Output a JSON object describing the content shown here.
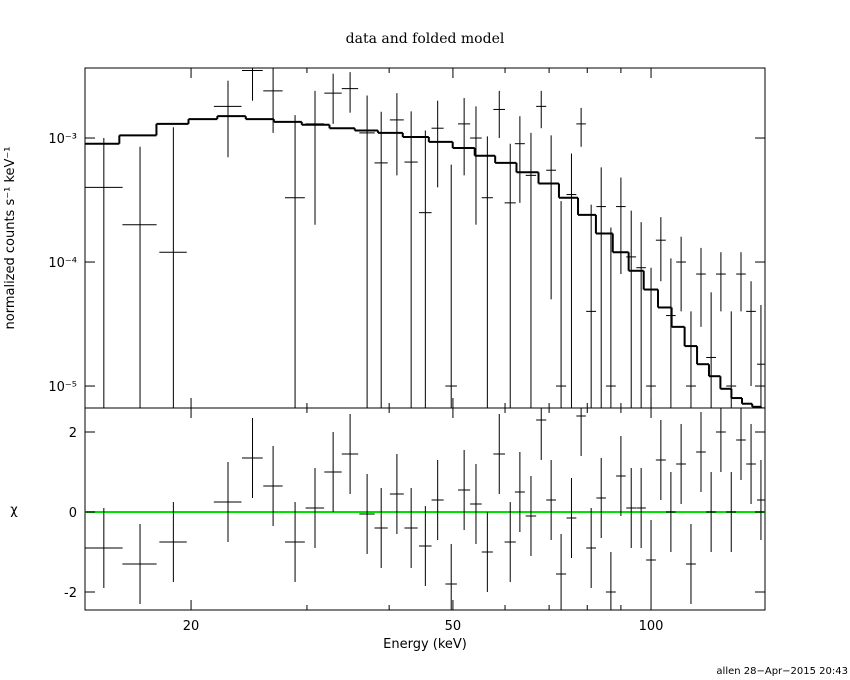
{
  "chart_data": [
    {
      "type": "errorbar",
      "title": "data and folded model",
      "ylabel": "normalized counts s⁻¹ keV⁻¹",
      "log_x": true,
      "log_y": true,
      "xlim": [
        13.8,
        149
      ],
      "ylim": [
        6.65e-06,
        0.00367
      ],
      "yticks": [
        {
          "value": 1e-05,
          "label": "10⁻⁵"
        },
        {
          "value": 0.0001,
          "label": "10⁻⁴"
        },
        {
          "value": 0.001,
          "label": "10⁻³"
        }
      ],
      "series": [
        {
          "color": "#000000",
          "x": [
            14.74,
            16.73,
            18.8,
            22.76,
            24.8,
            26.65,
            28.78,
            30.86,
            32.88,
            34.89,
            37.03,
            38.9,
            41.1,
            43.2,
            45.4,
            47.4,
            49.7,
            52.0,
            54.2,
            56.4,
            58.8,
            61.1,
            63.2,
            65.7,
            68.1,
            70.5,
            73.0,
            75.7,
            78.3,
            81.1,
            84.0,
            86.9,
            90.0,
            93.3,
            96.6,
            100,
            103.5,
            107.2,
            111.1,
            115,
            119.1,
            123.4,
            127.7,
            132.4,
            137,
            141.9,
            146.9
          ],
          "xerr": [
            1.0,
            1.0,
            0.9,
            1.1,
            0.9,
            0.9,
            1.0,
            1.0,
            1.0,
            1.0,
            1.0,
            0.9,
            1.0,
            1.0,
            1.0,
            1.0,
            1.0,
            1.1,
            1.1,
            1.1,
            1.2,
            1.2,
            1.1,
            1.2,
            1.2,
            1.2,
            1.3,
            1.3,
            1.3,
            1.4,
            1.4,
            1.5,
            1.5,
            1.6,
            1.6,
            1.7,
            1.8,
            1.8,
            1.9,
            2.0,
            2.0,
            2.1,
            2.2,
            2.3,
            2.3,
            2.4,
            2.0
          ],
          "values": [
            0.0004,
            0.0002,
            0.00012,
            0.0018,
            0.0035,
            0.0024,
            0.00033,
            0.0013,
            0.0023,
            0.0025,
            0.0011,
            0.00063,
            0.0014,
            0.00064,
            0.00025,
            0.0012,
            1e-05,
            0.0013,
            0.001,
            0.00033,
            0.0017,
            0.0003,
            0.0009,
            0.0005,
            0.0018,
            0.00055,
            1e-05,
            0.00035,
            0.0013,
            4e-05,
            0.00028,
            1e-05,
            0.00028,
            0.00011,
            9e-05,
            1e-05,
            0.00015,
            3.7e-05,
            0.0001,
            1e-05,
            8e-05,
            1.7e-05,
            8e-05,
            1e-05,
            8e-05,
            4e-05,
            1.5e-05
          ],
          "yerr": [
            0.0006,
            0.00065,
            0.0011,
            0.0011,
            0.0015,
            0.0013,
            0.0012,
            0.0011,
            0.001,
            0.0009,
            0.0011,
            0.001,
            0.0009,
            0.001,
            0.0009,
            0.0008,
            0.0006,
            0.0008,
            0.0008,
            0.0007,
            0.0007,
            0.0006,
            0.0006,
            0.0006,
            0.0006,
            0.0005,
            0.0003,
            0.0004,
            0.00045,
            0.00025,
            0.0003,
            0.00018,
            0.0002,
            0.00015,
            0.00012,
            8e-05,
            8e-05,
            7e-05,
            6e-05,
            3e-05,
            5e-05,
            4e-05,
            4e-05,
            3e-05,
            4e-05,
            3e-05,
            3e-05
          ]
        },
        {
          "type": "step",
          "color": "#000000",
          "x": [
            14.5,
            16.7,
            18.8,
            20.9,
            23,
            25.5,
            28,
            31,
            34,
            37,
            40,
            44,
            48,
            52,
            56,
            60,
            65,
            70,
            75,
            80,
            85,
            90,
            95,
            100,
            105,
            110,
            115,
            120,
            125,
            130,
            135,
            140,
            145,
            149
          ],
          "values": [
            0.0009,
            0.00105,
            0.0013,
            0.00142,
            0.0015,
            0.00142,
            0.00135,
            0.00128,
            0.0012,
            0.00115,
            0.0011,
            0.00102,
            0.00093,
            0.00083,
            0.00072,
            0.00063,
            0.00053,
            0.00043,
            0.00033,
            0.00024,
            0.00017,
            0.00012,
            8.5e-05,
            6e-05,
            4.3e-05,
            3e-05,
            2.1e-05,
            1.5e-05,
            1.2e-05,
            9.5e-06,
            8e-06,
            7.2e-06,
            6.8e-06,
            6.6e-06
          ]
        }
      ]
    },
    {
      "type": "errorbar",
      "xlabel": "Energy (keV)",
      "ylabel": "χ",
      "log_x": true,
      "xlim": [
        13.8,
        149
      ],
      "ylim": [
        -2.45,
        2.6
      ],
      "xticks": [
        20,
        50,
        100
      ],
      "xminorticks": [
        30,
        40,
        60,
        70,
        80,
        90
      ],
      "yticks": [
        -2,
        0,
        2
      ],
      "hline": 0,
      "hline_color": "#00e000",
      "series": [
        {
          "color": "#000000",
          "x": [
            14.74,
            16.73,
            18.8,
            22.76,
            24.8,
            26.65,
            28.78,
            30.86,
            32.88,
            34.89,
            37.03,
            38.9,
            41.1,
            43.2,
            45.4,
            47.4,
            49.7,
            52.0,
            54.2,
            56.4,
            58.8,
            61.1,
            63.2,
            65.7,
            68.1,
            70.5,
            73.0,
            75.7,
            78.3,
            81.1,
            84.0,
            86.9,
            90.0,
            93.3,
            96.6,
            100,
            103.5,
            107.2,
            111.1,
            115,
            119.1,
            123.4,
            127.7,
            132.4,
            137,
            141.9,
            146.9
          ],
          "xerr": [
            1.0,
            1.0,
            0.9,
            1.1,
            0.9,
            0.9,
            1.0,
            1.0,
            1.0,
            1.0,
            1.0,
            0.9,
            1.0,
            1.0,
            1.0,
            1.0,
            1.0,
            1.1,
            1.1,
            1.1,
            1.2,
            1.2,
            1.1,
            1.2,
            1.2,
            1.2,
            1.3,
            1.3,
            1.3,
            1.4,
            1.4,
            1.5,
            1.5,
            1.6,
            1.6,
            1.7,
            1.8,
            1.8,
            1.9,
            2.0,
            2.0,
            2.1,
            2.2,
            2.3,
            2.3,
            2.4,
            2.0
          ],
          "values": [
            -0.9,
            -1.3,
            -0.75,
            0.25,
            1.35,
            0.65,
            -0.75,
            0.1,
            1.0,
            1.45,
            -0.05,
            -0.4,
            0.45,
            -0.4,
            -0.85,
            0.3,
            -1.8,
            0.55,
            0.2,
            -1.0,
            1.45,
            -0.75,
            0.5,
            -0.1,
            2.3,
            0.3,
            -1.55,
            -0.15,
            2.4,
            -0.9,
            0.35,
            -2.0,
            0.9,
            0.1,
            0.1,
            -1.2,
            1.3,
            0.0,
            1.2,
            -1.3,
            1.5,
            0.0,
            2.0,
            0.0,
            1.8,
            1.2,
            0.3
          ],
          "yerr": [
            1,
            1,
            1,
            1,
            1,
            1,
            1,
            1,
            1,
            1,
            1,
            1,
            1,
            1,
            1,
            1,
            1,
            1,
            1,
            1,
            1,
            1,
            1,
            1,
            1,
            1,
            1,
            1,
            1,
            1,
            1,
            1,
            1,
            1,
            1,
            1,
            1,
            1,
            1,
            1,
            1,
            1,
            1,
            1,
            1,
            1,
            1
          ]
        }
      ]
    }
  ],
  "footer": "allen 28−Apr−2015 20:43"
}
